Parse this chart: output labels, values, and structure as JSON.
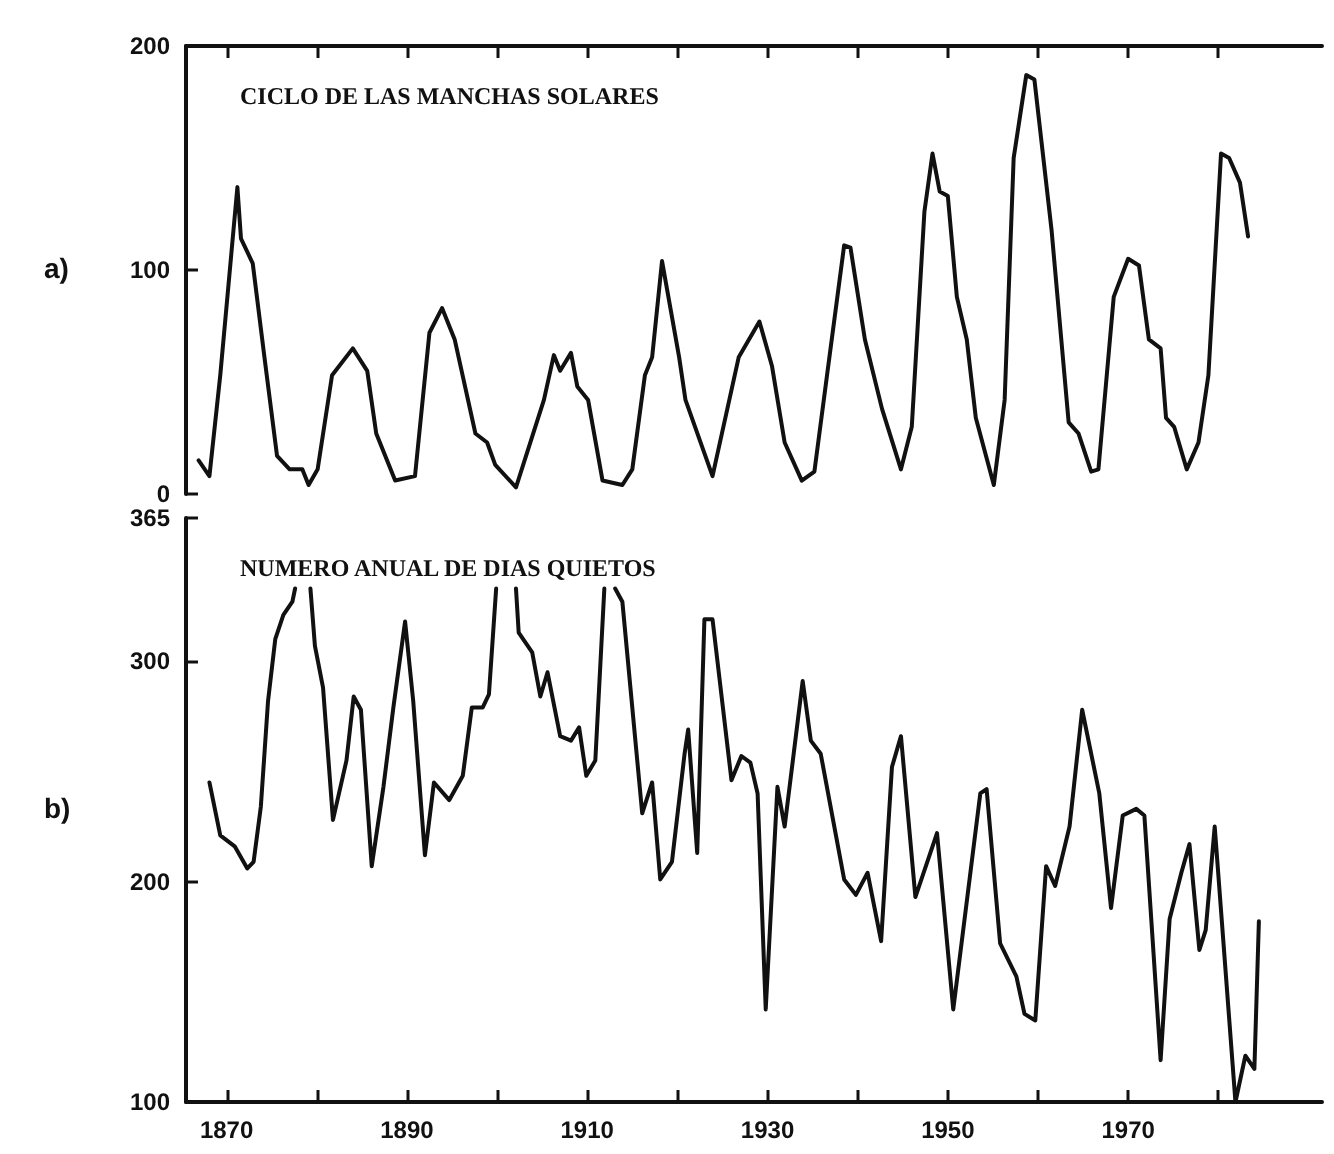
{
  "chart_data": [
    {
      "type": "line",
      "title": "CICLO DE LAS MANCHAS SOLARES",
      "annotations": [
        "a)"
      ],
      "color": "#111111",
      "marker": "none",
      "line_style": "solid",
      "grid": false,
      "tick_labels": "y",
      "x": [
        1866.9,
        1868.1,
        1869.3,
        1871.2,
        1871.6,
        1872.9,
        1874.2,
        1875.6,
        1877.0,
        1878.4,
        1879.1,
        1880.1,
        1881.7,
        1884.0,
        1885.6,
        1886.6,
        1888.7,
        1890.9,
        1892.5,
        1893.9,
        1895.3,
        1897.6,
        1898.9,
        1899.8,
        1902.1,
        1905.2,
        1906.3,
        1907.0,
        1908.2,
        1908.9,
        1910.1,
        1911.7,
        1913.9,
        1915.0,
        1916.4,
        1917.2,
        1918.3,
        1920.2,
        1920.9,
        1923.9,
        1926.8,
        1929.1,
        1930.5,
        1931.9,
        1933.8,
        1935.2,
        1936.6,
        1938.5,
        1939.2,
        1940.8,
        1942.7,
        1944.8,
        1946.0,
        1947.4,
        1948.3,
        1949.1,
        1950.0,
        1951.0,
        1952.1,
        1953.1,
        1955.1,
        1956.3,
        1957.3,
        1958.7,
        1959.6,
        1961.5,
        1963.4,
        1964.5,
        1965.9,
        1966.7,
        1968.4,
        1970.0,
        1971.2,
        1972.3,
        1973.6,
        1974.2,
        1975.1,
        1976.5,
        1977.8,
        1978.9,
        1980.3,
        1981.2,
        1982.4,
        1983.3
      ],
      "values": [
        15,
        8,
        53,
        137,
        114,
        103,
        61,
        17,
        11,
        11,
        4,
        11,
        53,
        65,
        55,
        27,
        6,
        8,
        72,
        83,
        69,
        27,
        23,
        13,
        3,
        42,
        62,
        55,
        63,
        48,
        42,
        6,
        4,
        11,
        53,
        61,
        104,
        61,
        42,
        8,
        61,
        77,
        57,
        23,
        6,
        10,
        53,
        111,
        110,
        69,
        38,
        11,
        30,
        126,
        152,
        135,
        133,
        88,
        69,
        34,
        4,
        42,
        150,
        187,
        185,
        118,
        32,
        27,
        10,
        11,
        88,
        105,
        102,
        69,
        65,
        34,
        30,
        11,
        23,
        53,
        152,
        150,
        139,
        115
      ],
      "xlim": [
        1865.5,
        1991.5
      ],
      "xticks": [
        {
          "value": 1870,
          "label": null
        },
        {
          "value": 1880,
          "label": null
        },
        {
          "value": 1890,
          "label": null
        },
        {
          "value": 1900,
          "label": null
        },
        {
          "value": 1910,
          "label": null
        },
        {
          "value": 1920,
          "label": null
        },
        {
          "value": 1930,
          "label": null
        },
        {
          "value": 1940,
          "label": null
        },
        {
          "value": 1950,
          "label": null
        },
        {
          "value": 1960,
          "label": null
        },
        {
          "value": 1970,
          "label": null
        },
        {
          "value": 1980,
          "label": null
        }
      ],
      "ylim": [
        0,
        200
      ],
      "yticks": [
        0,
        100,
        200
      ]
    },
    {
      "type": "line",
      "title": "NUMERO ANUAL DE DIAS QUIETOS",
      "annotations": [
        "b)"
      ],
      "color": "#111111",
      "marker": "none",
      "line_style": "solid",
      "grid": false,
      "x": [
        1868.1,
        1869.3,
        1870.9,
        1872.3,
        1873.0,
        1873.8,
        1874.6,
        1875.4,
        1876.3,
        1877.3,
        1877.6,
        1878.5,
        1879.3,
        1879.8,
        1880.7,
        1881.8,
        1883.3,
        1884.1,
        1884.9,
        1886.1,
        1887.4,
        1888.5,
        1889.8,
        1890.7,
        1892.0,
        1893.0,
        1894.7,
        1896.2,
        1897.2,
        1898.4,
        1899.1,
        1899.9,
        1901.0,
        1902.1,
        1902.4,
        1903.9,
        1904.8,
        1905.6,
        1907.0,
        1908.2,
        1909.1,
        1909.9,
        1910.9,
        1911.9,
        1912.5,
        1913.1,
        1913.9,
        1916.1,
        1917.2,
        1918.1,
        1919.4,
        1920.8,
        1921.2,
        1922.2,
        1923.0,
        1923.9,
        1926.0,
        1927.1,
        1928.1,
        1928.9,
        1929.8,
        1931.1,
        1931.9,
        1933.9,
        1934.8,
        1935.9,
        1938.5,
        1939.8,
        1941.1,
        1942.6,
        1943.8,
        1944.8,
        1946.4,
        1948.8,
        1950.6,
        1952.5,
        1953.6,
        1954.3,
        1955.8,
        1957.6,
        1958.5,
        1959.7,
        1960.9,
        1961.9,
        1963.5,
        1964.9,
        1966.8,
        1968.1,
        1969.4,
        1970.9,
        1971.8,
        1973.6,
        1974.6,
        1975.9,
        1976.8,
        1977.9,
        1978.6,
        1979.6,
        1981.9,
        1983.0,
        1984.0,
        1984.5
      ],
      "values": [
        245,
        221,
        216,
        206,
        209,
        234,
        282,
        310,
        321,
        327,
        333,
        null,
        333,
        307,
        288,
        228,
        255,
        284,
        278,
        207,
        243,
        279,
        318,
        282,
        212,
        245,
        237,
        248,
        279,
        279,
        285,
        333,
        null,
        333,
        313,
        304,
        284,
        295,
        266,
        264,
        270,
        248,
        255,
        333,
        null,
        333,
        327,
        231,
        245,
        201,
        209,
        258,
        269,
        213,
        319,
        319,
        246,
        257,
        254,
        240,
        142,
        243,
        225,
        291,
        264,
        258,
        201,
        194,
        204,
        173,
        252,
        266,
        193,
        222,
        142,
        204,
        240,
        242,
        172,
        157,
        140,
        137,
        207,
        198,
        225,
        278,
        240,
        188,
        230,
        233,
        230,
        119,
        183,
        204,
        217,
        169,
        178,
        225,
        100,
        121,
        115,
        182
      ],
      "xlim": [
        1865.5,
        1991.5
      ],
      "xticks": [
        1870,
        {
          "value": 1880,
          "label": null
        },
        1890,
        {
          "value": 1900,
          "label": null
        },
        1910,
        {
          "value": 1920,
          "label": null
        },
        1930,
        {
          "value": 1940,
          "label": null
        },
        1950,
        {
          "value": 1960,
          "label": null
        },
        1970,
        {
          "value": 1980,
          "label": null
        }
      ],
      "ylim": [
        100,
        365
      ],
      "yticks": [
        100,
        200,
        300,
        365
      ]
    }
  ]
}
